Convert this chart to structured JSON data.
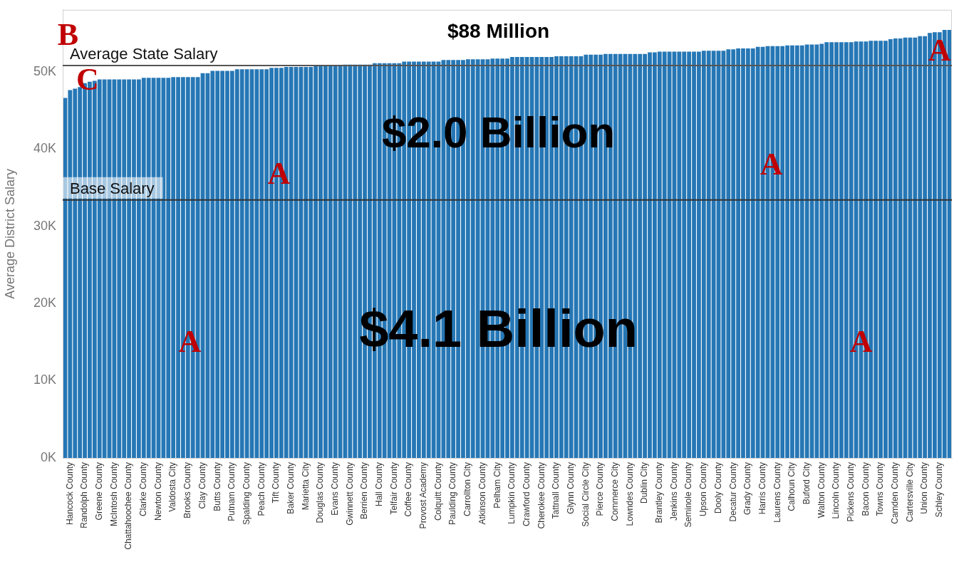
{
  "chart_data": {
    "type": "bar",
    "ylabel": "Average District Salary",
    "categories": [
      null,
      "Hancock County",
      null,
      null,
      "Randolph County",
      null,
      null,
      "Greene County",
      null,
      null,
      "McIntosh County",
      null,
      null,
      "Chattahoochee County",
      null,
      null,
      "Clarke County",
      null,
      null,
      "Newton County",
      null,
      null,
      "Valdosta City",
      null,
      null,
      "Brooks County",
      null,
      null,
      "Clay County",
      null,
      null,
      "Butts County",
      null,
      null,
      "Putnam County",
      null,
      null,
      "Spalding County",
      null,
      null,
      "Peach County",
      null,
      null,
      "Tift County",
      null,
      null,
      "Baker County",
      null,
      null,
      "Marietta City",
      null,
      null,
      "Douglas County",
      null,
      null,
      "Evans County",
      null,
      null,
      "Gwinnett County",
      null,
      null,
      "Berrien County",
      null,
      null,
      "Hall County",
      null,
      null,
      "Telfair County",
      null,
      null,
      "Coffee County",
      null,
      null,
      "Provost Academy",
      null,
      null,
      "Colquitt County",
      null,
      null,
      "Paulding County",
      null,
      null,
      "Carrollton City",
      null,
      null,
      "Atkinson County",
      null,
      null,
      "Pelham City",
      null,
      null,
      "Lumpkin County",
      null,
      null,
      "Crawford County",
      null,
      null,
      "Cherokee County",
      null,
      null,
      "Tattnall County",
      null,
      null,
      "Glynn County",
      null,
      null,
      "Social Circle City",
      null,
      null,
      "Pierce County",
      null,
      null,
      "Commerce City",
      null,
      null,
      "Lowndes County",
      null,
      null,
      "Dublin City",
      null,
      null,
      "Brantley County",
      null,
      null,
      "Jenkins County",
      null,
      null,
      "Seminole County",
      null,
      null,
      "Upson County",
      null,
      null,
      "Dooly County",
      null,
      null,
      "Decatur County",
      null,
      null,
      "Grady County",
      null,
      null,
      "Harris County",
      null,
      null,
      "Laurens County",
      null,
      null,
      "Calhoun City",
      null,
      null,
      "Buford City",
      null,
      null,
      "Walton County",
      null,
      null,
      "Lincoln County",
      null,
      null,
      "Pickens County",
      null,
      null,
      "Bacon County",
      null,
      null,
      "Towns County",
      null,
      null,
      "Camden County",
      null,
      null,
      "Cartersville City",
      null,
      null,
      "Union County",
      null,
      null,
      "Schley County",
      null,
      null
    ],
    "values": [
      46600,
      47600,
      47800,
      48000,
      48500,
      48700,
      48800,
      49000,
      49000,
      49000,
      49000,
      49000,
      49000,
      49000,
      49000,
      49000,
      49200,
      49200,
      49200,
      49200,
      49200,
      49200,
      49300,
      49300,
      49300,
      49300,
      49300,
      49300,
      49800,
      49800,
      50100,
      50100,
      50100,
      50100,
      50100,
      50300,
      50300,
      50300,
      50300,
      50300,
      50300,
      50300,
      50500,
      50500,
      50500,
      50600,
      50600,
      50600,
      50600,
      50600,
      50600,
      50700,
      50700,
      50700,
      50700,
      50700,
      50700,
      50900,
      50900,
      50900,
      50900,
      50900,
      50900,
      51100,
      51100,
      51100,
      51100,
      51100,
      51100,
      51300,
      51300,
      51300,
      51300,
      51300,
      51300,
      51300,
      51300,
      51500,
      51500,
      51500,
      51500,
      51500,
      51600,
      51600,
      51600,
      51600,
      51600,
      51700,
      51700,
      51700,
      51700,
      51900,
      51900,
      51900,
      51900,
      51900,
      51900,
      51900,
      51900,
      51900,
      52000,
      52000,
      52000,
      52000,
      52000,
      52000,
      52200,
      52200,
      52200,
      52200,
      52300,
      52300,
      52300,
      52300,
      52300,
      52300,
      52300,
      52300,
      52300,
      52500,
      52500,
      52600,
      52600,
      52600,
      52600,
      52600,
      52600,
      52600,
      52600,
      52600,
      52700,
      52700,
      52700,
      52700,
      52700,
      52900,
      52900,
      53000,
      53000,
      53000,
      53000,
      53200,
      53200,
      53300,
      53300,
      53300,
      53300,
      53400,
      53400,
      53400,
      53400,
      53500,
      53500,
      53500,
      53600,
      53800,
      53800,
      53800,
      53800,
      53800,
      53800,
      53900,
      53900,
      53900,
      54000,
      54000,
      54000,
      54000,
      54200,
      54300,
      54300,
      54400,
      54400,
      54400,
      54600,
      54600,
      55000,
      55100,
      55100,
      55400,
      55400
    ],
    "color": "#2677b5",
    "ylim": [
      0,
      58000
    ],
    "yticks": [
      {
        "value": 0,
        "label": "0K"
      },
      {
        "value": 10000,
        "label": "10K"
      },
      {
        "value": 20000,
        "label": "20K"
      },
      {
        "value": 30000,
        "label": "30K"
      },
      {
        "value": 40000,
        "label": "40K"
      },
      {
        "value": 50000,
        "label": "50K"
      }
    ],
    "ref_lines": [
      {
        "axis": "y",
        "value": 50800,
        "label": "Average State Salary",
        "color": "#555555"
      },
      {
        "axis": "y",
        "value": 33400,
        "label": "Base Salary",
        "color": "#333333"
      }
    ],
    "annotations": [
      "$88 Million",
      "$2.0 Billion",
      "$4.1 Billion",
      "A",
      "A",
      "A",
      "A",
      "A",
      "B",
      "C"
    ],
    "legend": false
  }
}
